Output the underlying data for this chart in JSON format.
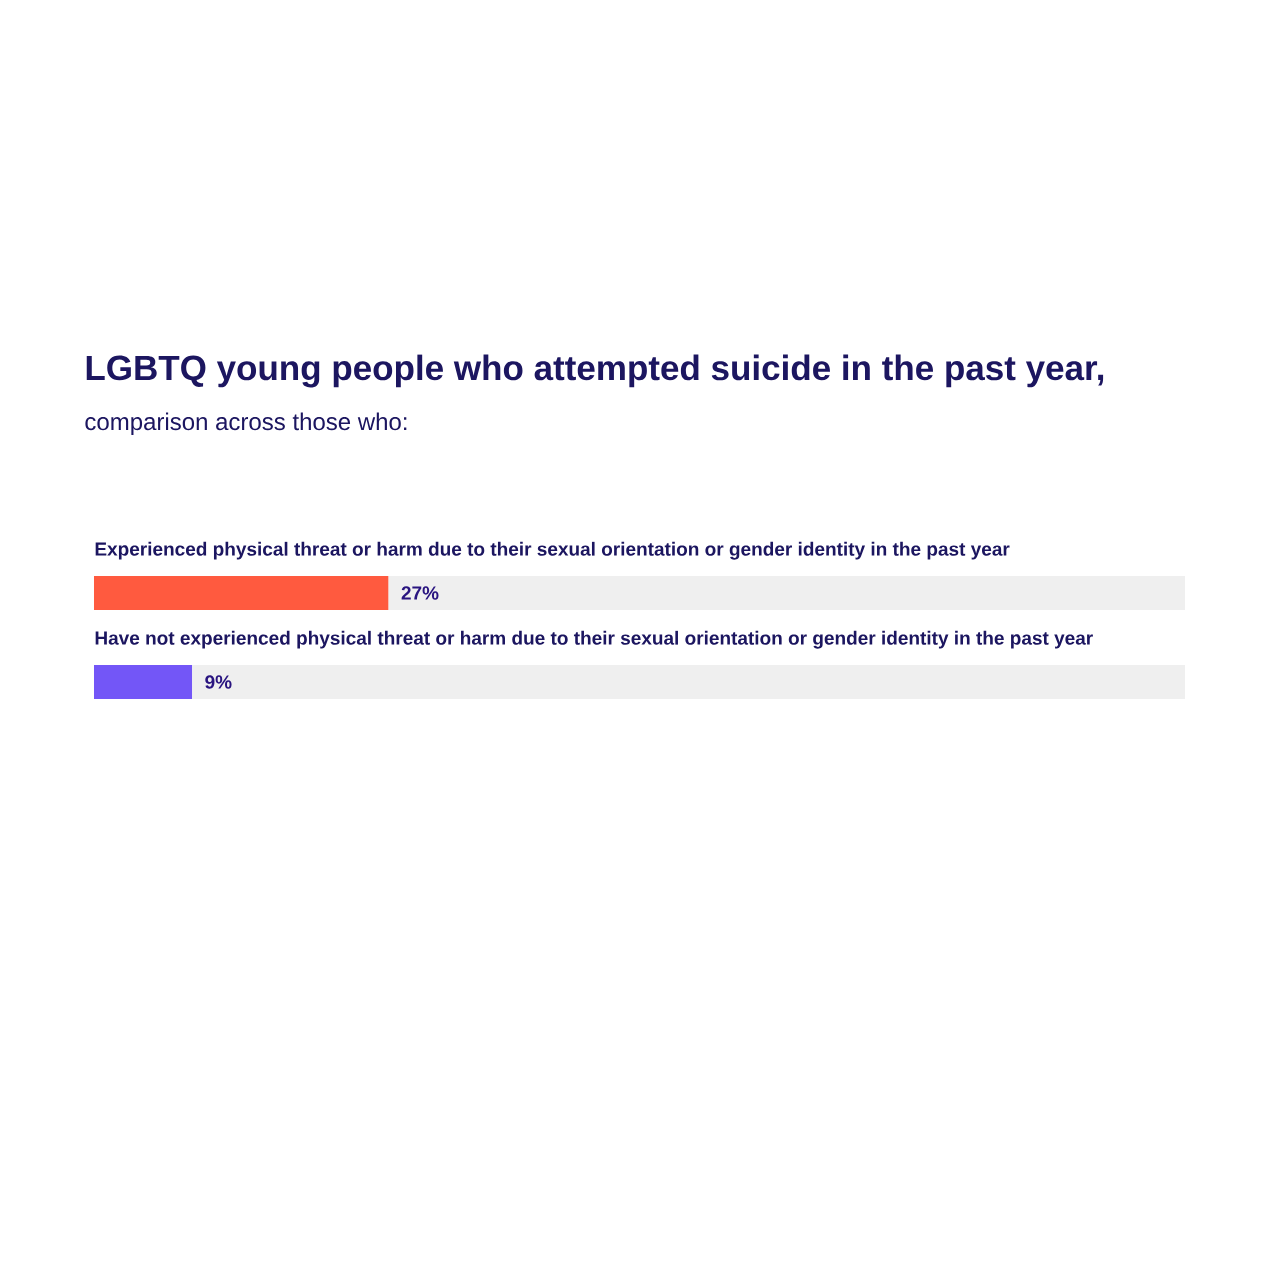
{
  "chart_data": {
    "type": "bar",
    "orientation": "horizontal",
    "stacked": true,
    "title": "LGBTQ young people who attempted suicide in the past year,",
    "subtitle": "comparison across those who:",
    "categories": [
      "Experienced physical threat or harm due to their sexual orientation or gender identity in the past year",
      "Have not experienced physical threat or harm due to their sexual orientation or gender identity in the past year"
    ],
    "series": [
      {
        "colors": [
          "#ff5a3f",
          "#7356f7"
        ],
        "values": [
          27,
          9
        ],
        "value_labels": [
          "27%",
          "9%"
        ]
      },
      {
        "color": "#efefef",
        "values": [
          73,
          91
        ]
      }
    ],
    "xlim": [
      0,
      100
    ]
  }
}
